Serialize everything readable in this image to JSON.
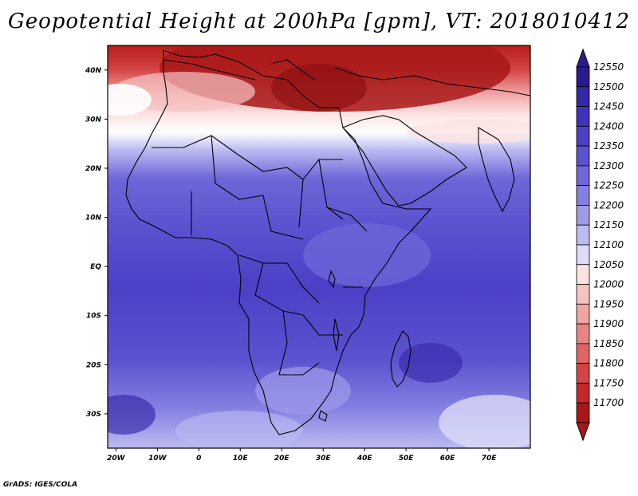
{
  "title": "Geopotential Height at 200hPa [gpm], VT: 2018010412",
  "footer": "GrADS: IGES/COLA",
  "map": {
    "region": "Africa and Arabian Sea",
    "lat_range": [
      -37,
      45
    ],
    "lon_range": [
      -22,
      80
    ],
    "lat_ticks": [
      "40N",
      "30N",
      "20N",
      "10N",
      "EQ",
      "10S",
      "20S",
      "30S"
    ],
    "lon_ticks": [
      "20W",
      "10W",
      "0",
      "10E",
      "20E",
      "30E",
      "40E",
      "50E",
      "60E",
      "70E"
    ]
  },
  "colorbar": {
    "levels": [
      "12550",
      "12500",
      "12450",
      "12400",
      "12350",
      "12300",
      "12250",
      "12200",
      "12150",
      "12100",
      "12050",
      "12000",
      "11950",
      "11900",
      "11850",
      "11800",
      "11750",
      "11700"
    ],
    "colors": [
      "#2a1a90",
      "#3527a8",
      "#4033bb",
      "#4b40c6",
      "#5a52cf",
      "#6d67d8",
      "#8480e1",
      "#9e9be9",
      "#bbbaf1",
      "#dcdbf8",
      "#fbe2e2",
      "#f6c3c3",
      "#f0a4a4",
      "#e88484",
      "#e06464",
      "#d44444",
      "#c42828",
      "#a81818"
    ]
  }
}
